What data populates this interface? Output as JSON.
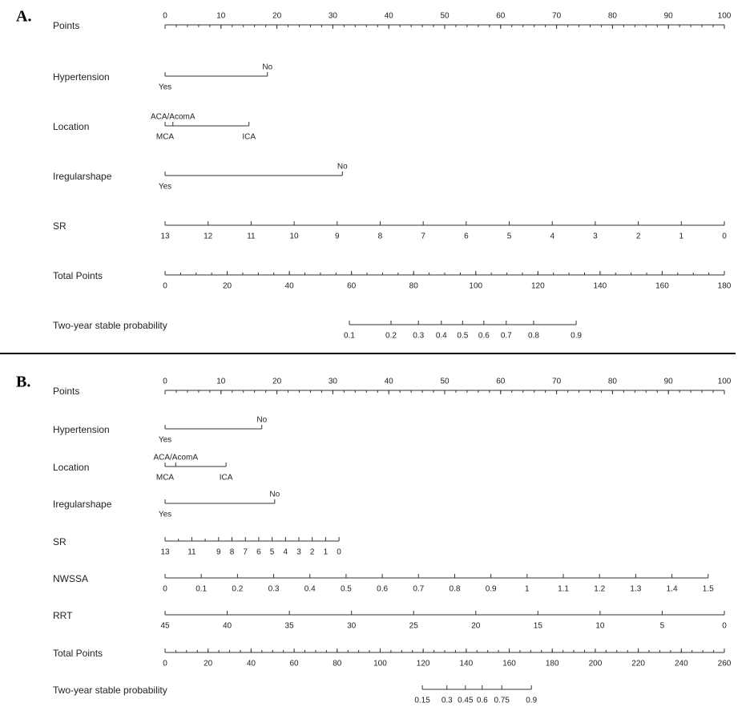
{
  "panels": [
    {
      "label": "A.",
      "rows": [
        {
          "name": "Points",
          "kind": "linear",
          "span": [
            0,
            100
          ],
          "lim": [
            0,
            100
          ],
          "ticks": [
            0,
            10,
            20,
            30,
            40,
            50,
            60,
            70,
            80,
            90,
            100
          ],
          "minor_step": 2,
          "labels_above": true
        },
        {
          "name": "Hypertension",
          "kind": "levels",
          "levels": [
            {
              "label": "Yes",
              "at": 0
            },
            {
              "label": "No",
              "at": 18.3
            }
          ]
        },
        {
          "name": "Location",
          "kind": "levels",
          "levels": [
            {
              "label": "MCA",
              "at": 0
            },
            {
              "label": "ACA/AcomA",
              "at": 1.4
            },
            {
              "label": "ICA",
              "at": 15
            }
          ]
        },
        {
          "name": "Iregularshape",
          "kind": "levels",
          "levels": [
            {
              "label": "Yes",
              "at": 0
            },
            {
              "label": "No",
              "at": 31.7
            }
          ]
        },
        {
          "name": "SR",
          "kind": "linear",
          "span": [
            0,
            100
          ],
          "lim": [
            13,
            0
          ],
          "ticks": [
            13,
            12,
            11,
            10,
            9,
            8,
            7,
            6,
            5,
            4,
            3,
            2,
            1,
            0
          ]
        },
        {
          "name": "Total Points",
          "kind": "linear",
          "span": [
            0,
            100
          ],
          "lim": [
            0,
            180
          ],
          "ticks": [
            0,
            20,
            40,
            60,
            80,
            100,
            120,
            140,
            160,
            180
          ],
          "minor_step": 5
        },
        {
          "name": "Two-year stable probability",
          "kind": "points",
          "ticks": [
            {
              "value": 0.1,
              "at": 32.95
            },
            {
              "value": 0.2,
              "at": 40.4
            },
            {
              "value": 0.3,
              "at": 45.3
            },
            {
              "value": 0.4,
              "at": 49.4
            },
            {
              "value": 0.5,
              "at": 53.2
            },
            {
              "value": 0.6,
              "at": 57
            },
            {
              "value": 0.7,
              "at": 61
            },
            {
              "value": 0.8,
              "at": 65.9
            },
            {
              "value": 0.9,
              "at": 73.5
            }
          ]
        }
      ]
    },
    {
      "label": "B.",
      "rows": [
        {
          "name": "Points",
          "kind": "linear",
          "span": [
            0,
            100
          ],
          "lim": [
            0,
            100
          ],
          "ticks": [
            0,
            10,
            20,
            30,
            40,
            50,
            60,
            70,
            80,
            90,
            100
          ],
          "minor_step": 2,
          "labels_above": true
        },
        {
          "name": "Hypertension",
          "kind": "levels",
          "levels": [
            {
              "label": "Yes",
              "at": 0
            },
            {
              "label": "No",
              "at": 17.3
            }
          ]
        },
        {
          "name": "Location",
          "kind": "levels",
          "levels": [
            {
              "label": "MCA",
              "at": 0
            },
            {
              "label": "ACA/AcomA",
              "at": 1.9
            },
            {
              "label": "ICA",
              "at": 10.9
            }
          ]
        },
        {
          "name": "Iregularshape",
          "kind": "levels",
          "levels": [
            {
              "label": "Yes",
              "at": 0
            },
            {
              "label": "No",
              "at": 19.6
            }
          ]
        },
        {
          "name": "SR",
          "kind": "linear",
          "span": [
            0,
            31.1
          ],
          "lim": [
            13,
            0
          ],
          "ticks": [
            13,
            11,
            9,
            8,
            7,
            6,
            5,
            4,
            3,
            2,
            1,
            0
          ],
          "minor_ticks": [
            12,
            10
          ]
        },
        {
          "name": "NWSSA",
          "kind": "linear",
          "span": [
            0,
            97.1
          ],
          "lim": [
            0,
            1.5
          ],
          "ticks": [
            0,
            0.1,
            0.2,
            0.3,
            0.4,
            0.5,
            0.6,
            0.7,
            0.8,
            0.9,
            1,
            1.1,
            1.2,
            1.3,
            1.4,
            1.5
          ]
        },
        {
          "name": "RRT",
          "kind": "linear",
          "span": [
            0,
            100
          ],
          "lim": [
            45,
            0
          ],
          "ticks": [
            45,
            40,
            35,
            30,
            25,
            20,
            15,
            10,
            5,
            0
          ]
        },
        {
          "name": "Total Points",
          "kind": "linear",
          "span": [
            0,
            100
          ],
          "lim": [
            0,
            260
          ],
          "ticks": [
            0,
            20,
            40,
            60,
            80,
            100,
            120,
            140,
            160,
            180,
            200,
            220,
            240,
            260
          ],
          "minor_step": 5
        },
        {
          "name": "Two-year stable probability",
          "kind": "points",
          "ticks": [
            {
              "value": 0.15,
              "at": 46
            },
            {
              "value": 0.3,
              "at": 50.4
            },
            {
              "value": 0.45,
              "at": 53.7
            },
            {
              "value": 0.6,
              "at": 56.7
            },
            {
              "value": 0.75,
              "at": 60.2
            },
            {
              "value": 0.9,
              "at": 65.5
            }
          ]
        }
      ]
    }
  ]
}
